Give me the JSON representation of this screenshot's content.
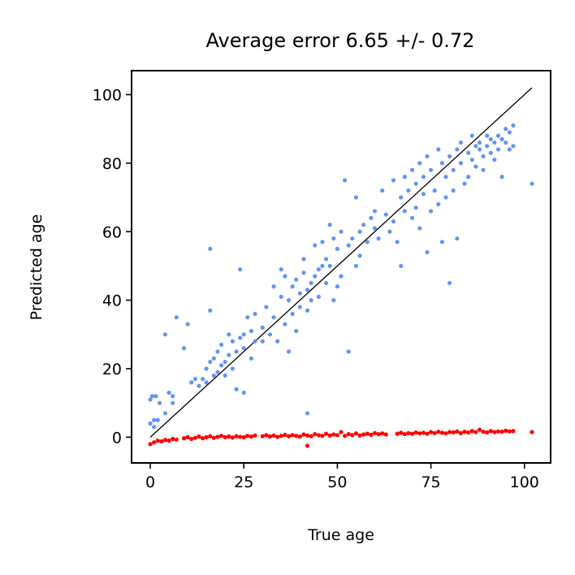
{
  "chart_data": {
    "type": "scatter",
    "title": "Average error 6.65 +/- 0.72",
    "xlabel": "True age",
    "ylabel": "Predicted age",
    "xlim": [
      -5,
      107
    ],
    "ylim": [
      -7.5,
      107
    ],
    "xticks": [
      0,
      25,
      50,
      75,
      100
    ],
    "yticks": [
      0,
      20,
      40,
      60,
      80,
      100
    ],
    "grid": false,
    "identity_line": {
      "x": [
        0,
        102
      ],
      "y": [
        0,
        102
      ],
      "color": "#000000"
    },
    "series": [
      {
        "color": "#6495ED",
        "points": [
          [
            0,
            11
          ],
          [
            0,
            4
          ],
          [
            0.5,
            12
          ],
          [
            1,
            3
          ],
          [
            1,
            5
          ],
          [
            1.5,
            12
          ],
          [
            2,
            5
          ],
          [
            2.5,
            10
          ],
          [
            4,
            30
          ],
          [
            4,
            7
          ],
          [
            5,
            13
          ],
          [
            6,
            12
          ],
          [
            6,
            10
          ],
          [
            7,
            35
          ],
          [
            9,
            26
          ],
          [
            10,
            33
          ],
          [
            11,
            16
          ],
          [
            12,
            17
          ],
          [
            13,
            15
          ],
          [
            14,
            17
          ],
          [
            15,
            20
          ],
          [
            15,
            16
          ],
          [
            16,
            22
          ],
          [
            16,
            37
          ],
          [
            16,
            55
          ],
          [
            17,
            18
          ],
          [
            17,
            23
          ],
          [
            18,
            19
          ],
          [
            18,
            25
          ],
          [
            19,
            21
          ],
          [
            19,
            27
          ],
          [
            20,
            22
          ],
          [
            20,
            18
          ],
          [
            21,
            24
          ],
          [
            21,
            30
          ],
          [
            22,
            20
          ],
          [
            22,
            28
          ],
          [
            23,
            25
          ],
          [
            23,
            14
          ],
          [
            24,
            29
          ],
          [
            24,
            49
          ],
          [
            25,
            26
          ],
          [
            25,
            30
          ],
          [
            25,
            13
          ],
          [
            26,
            35
          ],
          [
            27,
            23
          ],
          [
            27,
            31
          ],
          [
            28,
            28
          ],
          [
            28,
            36
          ],
          [
            30,
            32
          ],
          [
            30,
            28
          ],
          [
            31,
            38
          ],
          [
            32,
            30
          ],
          [
            33,
            35
          ],
          [
            33,
            44
          ],
          [
            34,
            28
          ],
          [
            35,
            41
          ],
          [
            35,
            49
          ],
          [
            36,
            33
          ],
          [
            36,
            47
          ],
          [
            37,
            40
          ],
          [
            37,
            25
          ],
          [
            38,
            44
          ],
          [
            38,
            36
          ],
          [
            39,
            46
          ],
          [
            39,
            31
          ],
          [
            40,
            42
          ],
          [
            40,
            38
          ],
          [
            41,
            48
          ],
          [
            41,
            52
          ],
          [
            42,
            43
          ],
          [
            42,
            37
          ],
          [
            42,
            7
          ],
          [
            43,
            45
          ],
          [
            43,
            40
          ],
          [
            44,
            47
          ],
          [
            44,
            56
          ],
          [
            45,
            49
          ],
          [
            45,
            41
          ],
          [
            46,
            50
          ],
          [
            46,
            57
          ],
          [
            47,
            52
          ],
          [
            47,
            45
          ],
          [
            48,
            62
          ],
          [
            48,
            50
          ],
          [
            49,
            40
          ],
          [
            49,
            58
          ],
          [
            50,
            55
          ],
          [
            50,
            44
          ],
          [
            51,
            60
          ],
          [
            51,
            47
          ],
          [
            52,
            75
          ],
          [
            53,
            56
          ],
          [
            53,
            25
          ],
          [
            54,
            58
          ],
          [
            55,
            70
          ],
          [
            55,
            50
          ],
          [
            56,
            60
          ],
          [
            56,
            53
          ],
          [
            57,
            62
          ],
          [
            58,
            57
          ],
          [
            59,
            64
          ],
          [
            60,
            61
          ],
          [
            60,
            66
          ],
          [
            61,
            58
          ],
          [
            62,
            72
          ],
          [
            63,
            65
          ],
          [
            64,
            60
          ],
          [
            65,
            75
          ],
          [
            65,
            63
          ],
          [
            66,
            57
          ],
          [
            67,
            70
          ],
          [
            67,
            50
          ],
          [
            68,
            66
          ],
          [
            68,
            76
          ],
          [
            69,
            72
          ],
          [
            70,
            64
          ],
          [
            70,
            78
          ],
          [
            71,
            74
          ],
          [
            71,
            67
          ],
          [
            72,
            80
          ],
          [
            72,
            61
          ],
          [
            73,
            76
          ],
          [
            73,
            71
          ],
          [
            74,
            82
          ],
          [
            74,
            54
          ],
          [
            75,
            78
          ],
          [
            75,
            66
          ],
          [
            76,
            72
          ],
          [
            77,
            84
          ],
          [
            77,
            68
          ],
          [
            78,
            80
          ],
          [
            78,
            57
          ],
          [
            79,
            76
          ],
          [
            79,
            70
          ],
          [
            80,
            82
          ],
          [
            80,
            45
          ],
          [
            81,
            78
          ],
          [
            81,
            72
          ],
          [
            82,
            84
          ],
          [
            82,
            58
          ],
          [
            83,
            86
          ],
          [
            83,
            80
          ],
          [
            84,
            74
          ],
          [
            85,
            83
          ],
          [
            85,
            76
          ],
          [
            86,
            88
          ],
          [
            86,
            81
          ],
          [
            87,
            79
          ],
          [
            87,
            85
          ],
          [
            88,
            86
          ],
          [
            88,
            84
          ],
          [
            89,
            82
          ],
          [
            89,
            78
          ],
          [
            90,
            88
          ],
          [
            90,
            85
          ],
          [
            91,
            83
          ],
          [
            91,
            87
          ],
          [
            92,
            86
          ],
          [
            92,
            81
          ],
          [
            93,
            88
          ],
          [
            93,
            84
          ],
          [
            94,
            87
          ],
          [
            94,
            76
          ],
          [
            95,
            90
          ],
          [
            95,
            86
          ],
          [
            96,
            84
          ],
          [
            96,
            89
          ],
          [
            97,
            85
          ],
          [
            97,
            91
          ],
          [
            102,
            74
          ]
        ]
      },
      {
        "color": "#FF0000",
        "points": [
          [
            0,
            -2
          ],
          [
            1,
            -1.5
          ],
          [
            2,
            -1
          ],
          [
            3,
            -1.2
          ],
          [
            4,
            -0.8
          ],
          [
            5,
            -1
          ],
          [
            6,
            -0.5
          ],
          [
            7,
            -0.7
          ],
          [
            9,
            -0.3
          ],
          [
            10,
            0
          ],
          [
            11,
            -0.5
          ],
          [
            12,
            -0.2
          ],
          [
            13,
            0.2
          ],
          [
            14,
            -0.3
          ],
          [
            15,
            0
          ],
          [
            16,
            0.3
          ],
          [
            17,
            -0.2
          ],
          [
            18,
            0.1
          ],
          [
            19,
            0.4
          ],
          [
            20,
            0
          ],
          [
            21,
            0.2
          ],
          [
            22,
            -0.1
          ],
          [
            23,
            0.3
          ],
          [
            24,
            0.1
          ],
          [
            25,
            0
          ],
          [
            26,
            0.4
          ],
          [
            27,
            0.2
          ],
          [
            28,
            0.5
          ],
          [
            30,
            0.3
          ],
          [
            31,
            0.6
          ],
          [
            32,
            0.2
          ],
          [
            33,
            0.5
          ],
          [
            34,
            0.1
          ],
          [
            35,
            0.4
          ],
          [
            36,
            0.7
          ],
          [
            37,
            0.3
          ],
          [
            38,
            0.6
          ],
          [
            39,
            0.4
          ],
          [
            40,
            0.2
          ],
          [
            41,
            0.8
          ],
          [
            42,
            -2.5
          ],
          [
            42,
            0.5
          ],
          [
            43,
            0.3
          ],
          [
            44,
            0.9
          ],
          [
            45,
            0.6
          ],
          [
            46,
            0.4
          ],
          [
            47,
            1
          ],
          [
            48,
            0.5
          ],
          [
            49,
            0.8
          ],
          [
            50,
            0.6
          ],
          [
            51,
            1.5
          ],
          [
            52,
            0.4
          ],
          [
            53,
            0.9
          ],
          [
            54,
            0.6
          ],
          [
            55,
            1.1
          ],
          [
            56,
            0.5
          ],
          [
            57,
            0.8
          ],
          [
            58,
            1
          ],
          [
            59,
            0.7
          ],
          [
            60,
            1.2
          ],
          [
            61,
            0.9
          ],
          [
            62,
            1.1
          ],
          [
            63,
            0.8
          ],
          [
            66,
            1
          ],
          [
            67,
            1.3
          ],
          [
            68,
            0.9
          ],
          [
            69,
            1.2
          ],
          [
            70,
            1
          ],
          [
            71,
            1.4
          ],
          [
            72,
            1.1
          ],
          [
            73,
            1.3
          ],
          [
            74,
            1
          ],
          [
            75,
            1.5
          ],
          [
            76,
            1.2
          ],
          [
            77,
            1.6
          ],
          [
            78,
            1.3
          ],
          [
            79,
            1.1
          ],
          [
            80,
            1.5
          ],
          [
            81,
            1.4
          ],
          [
            82,
            1.7
          ],
          [
            83,
            1.2
          ],
          [
            84,
            1.6
          ],
          [
            85,
            1.4
          ],
          [
            86,
            1.8
          ],
          [
            87,
            1.5
          ],
          [
            88,
            2.2
          ],
          [
            89,
            1.6
          ],
          [
            90,
            1.4
          ],
          [
            91,
            1.8
          ],
          [
            92,
            1.5
          ],
          [
            93,
            1.7
          ],
          [
            94,
            1.6
          ],
          [
            95,
            1.9
          ],
          [
            96,
            1.7
          ],
          [
            97,
            1.8
          ],
          [
            102,
            1.5
          ]
        ]
      }
    ]
  }
}
